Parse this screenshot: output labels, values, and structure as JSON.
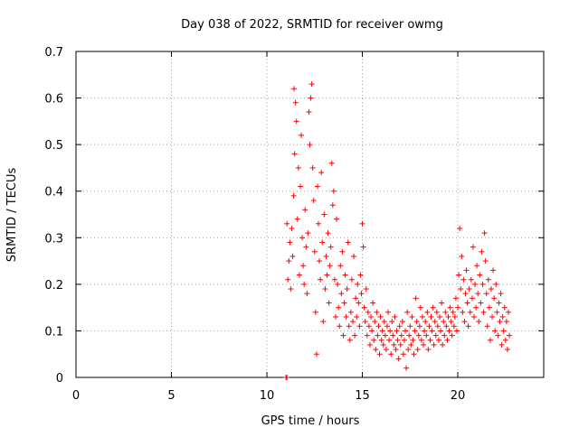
{
  "chart_data": {
    "type": "scatter",
    "title": "Day 038 of 2022, SRMTID for receiver owmg",
    "xlabel": "GPS time / hours",
    "ylabel": "SRMTID / TECUs",
    "xlim": [
      0,
      24.5
    ],
    "ylim": [
      0,
      0.7
    ],
    "xticks": [
      0,
      5,
      10,
      15,
      20
    ],
    "yticks": [
      0,
      0.1,
      0.2,
      0.3,
      0.4,
      0.5,
      0.6,
      0.7
    ],
    "xtick_labels": [
      "0",
      "5",
      "10",
      "15",
      "20"
    ],
    "ytick_labels": [
      "0",
      "0.1",
      "0.2",
      "0.3",
      "0.4",
      "0.5",
      "0.6",
      "0.7"
    ],
    "grid": true,
    "marker_color": "#ff0000",
    "marker": "+",
    "series": [
      {
        "name": "SRMTID",
        "points": [
          [
            11.0,
            0.0
          ],
          [
            11.05,
            0.0
          ],
          [
            11.05,
            0.33
          ],
          [
            11.1,
            0.21
          ],
          [
            11.15,
            0.25
          ],
          [
            11.2,
            0.29
          ],
          [
            11.25,
            0.19
          ],
          [
            11.3,
            0.32
          ],
          [
            11.35,
            0.26
          ],
          [
            11.4,
            0.39
          ],
          [
            11.42,
            0.62
          ],
          [
            11.45,
            0.48
          ],
          [
            11.5,
            0.59
          ],
          [
            11.55,
            0.55
          ],
          [
            11.6,
            0.34
          ],
          [
            11.65,
            0.45
          ],
          [
            11.7,
            0.22
          ],
          [
            11.75,
            0.41
          ],
          [
            11.8,
            0.52
          ],
          [
            11.85,
            0.3
          ],
          [
            11.9,
            0.24
          ],
          [
            11.95,
            0.2
          ],
          [
            12.0,
            0.36
          ],
          [
            12.05,
            0.28
          ],
          [
            12.1,
            0.18
          ],
          [
            12.15,
            0.31
          ],
          [
            12.2,
            0.57
          ],
          [
            12.25,
            0.5
          ],
          [
            12.3,
            0.6
          ],
          [
            12.35,
            0.63
          ],
          [
            12.4,
            0.45
          ],
          [
            12.45,
            0.38
          ],
          [
            12.5,
            0.27
          ],
          [
            12.55,
            0.14
          ],
          [
            12.6,
            0.05
          ],
          [
            12.65,
            0.41
          ],
          [
            12.7,
            0.33
          ],
          [
            12.75,
            0.25
          ],
          [
            12.8,
            0.21
          ],
          [
            12.85,
            0.44
          ],
          [
            12.9,
            0.29
          ],
          [
            12.95,
            0.12
          ],
          [
            13.0,
            0.35
          ],
          [
            13.05,
            0.19
          ],
          [
            13.1,
            0.26
          ],
          [
            13.15,
            0.22
          ],
          [
            13.2,
            0.31
          ],
          [
            13.25,
            0.16
          ],
          [
            13.3,
            0.24
          ],
          [
            13.35,
            0.28
          ],
          [
            13.4,
            0.46
          ],
          [
            13.45,
            0.37
          ],
          [
            13.5,
            0.4
          ],
          [
            13.55,
            0.21
          ],
          [
            13.6,
            0.13
          ],
          [
            13.65,
            0.34
          ],
          [
            13.7,
            0.2
          ],
          [
            13.75,
            0.15
          ],
          [
            13.8,
            0.11
          ],
          [
            13.85,
            0.24
          ],
          [
            13.9,
            0.18
          ],
          [
            13.95,
            0.27
          ],
          [
            14.0,
            0.09
          ],
          [
            14.05,
            0.16
          ],
          [
            14.1,
            0.22
          ],
          [
            14.15,
            0.13
          ],
          [
            14.2,
            0.19
          ],
          [
            14.25,
            0.29
          ],
          [
            14.3,
            0.11
          ],
          [
            14.35,
            0.08
          ],
          [
            14.4,
            0.14
          ],
          [
            14.45,
            0.21
          ],
          [
            14.5,
            0.12
          ],
          [
            14.55,
            0.26
          ],
          [
            14.6,
            0.09
          ],
          [
            14.65,
            0.17
          ],
          [
            14.7,
            0.13
          ],
          [
            14.75,
            0.2
          ],
          [
            14.8,
            0.16
          ],
          [
            14.85,
            0.11
          ],
          [
            14.9,
            0.22
          ],
          [
            14.95,
            0.18
          ],
          [
            15.0,
            0.33
          ],
          [
            15.05,
            0.28
          ],
          [
            15.1,
            0.15
          ],
          [
            15.15,
            0.12
          ],
          [
            15.2,
            0.19
          ],
          [
            15.25,
            0.09
          ],
          [
            15.3,
            0.14
          ],
          [
            15.35,
            0.11
          ],
          [
            15.4,
            0.07
          ],
          [
            15.45,
            0.13
          ],
          [
            15.5,
            0.1
          ],
          [
            15.55,
            0.16
          ],
          [
            15.6,
            0.08
          ],
          [
            15.65,
            0.12
          ],
          [
            15.7,
            0.06
          ],
          [
            15.75,
            0.14
          ],
          [
            15.8,
            0.09
          ],
          [
            15.85,
            0.11
          ],
          [
            15.9,
            0.05
          ],
          [
            15.95,
            0.13
          ],
          [
            16.0,
            0.08
          ],
          [
            16.05,
            0.1
          ],
          [
            16.1,
            0.07
          ],
          [
            16.15,
            0.12
          ],
          [
            16.2,
            0.09
          ],
          [
            16.25,
            0.06
          ],
          [
            16.3,
            0.11
          ],
          [
            16.35,
            0.14
          ],
          [
            16.4,
            0.08
          ],
          [
            16.45,
            0.1
          ],
          [
            16.5,
            0.05
          ],
          [
            16.55,
            0.12
          ],
          [
            16.6,
            0.09
          ],
          [
            16.65,
            0.07
          ],
          [
            16.7,
            0.13
          ],
          [
            16.75,
            0.06
          ],
          [
            16.8,
            0.1
          ],
          [
            16.85,
            0.08
          ],
          [
            16.9,
            0.04
          ],
          [
            16.95,
            0.11
          ],
          [
            17.0,
            0.07
          ],
          [
            17.05,
            0.09
          ],
          [
            17.1,
            0.12
          ],
          [
            17.15,
            0.05
          ],
          [
            17.2,
            0.08
          ],
          [
            17.25,
            0.1
          ],
          [
            17.3,
            0.02
          ],
          [
            17.35,
            0.14
          ],
          [
            17.4,
            0.06
          ],
          [
            17.45,
            0.09
          ],
          [
            17.5,
            0.11
          ],
          [
            17.55,
            0.07
          ],
          [
            17.6,
            0.13
          ],
          [
            17.65,
            0.08
          ],
          [
            17.7,
            0.05
          ],
          [
            17.75,
            0.1
          ],
          [
            17.8,
            0.17
          ],
          [
            17.85,
            0.12
          ],
          [
            17.9,
            0.06
          ],
          [
            17.95,
            0.09
          ],
          [
            18.0,
            0.11
          ],
          [
            18.05,
            0.15
          ],
          [
            18.1,
            0.08
          ],
          [
            18.15,
            0.13
          ],
          [
            18.2,
            0.07
          ],
          [
            18.25,
            0.1
          ],
          [
            18.3,
            0.12
          ],
          [
            18.35,
            0.09
          ],
          [
            18.4,
            0.14
          ],
          [
            18.45,
            0.06
          ],
          [
            18.5,
            0.11
          ],
          [
            18.55,
            0.08
          ],
          [
            18.6,
            0.13
          ],
          [
            18.65,
            0.1
          ],
          [
            18.7,
            0.15
          ],
          [
            18.75,
            0.07
          ],
          [
            18.8,
            0.12
          ],
          [
            18.85,
            0.09
          ],
          [
            18.9,
            0.14
          ],
          [
            18.95,
            0.11
          ],
          [
            19.0,
            0.08
          ],
          [
            19.05,
            0.13
          ],
          [
            19.1,
            0.1
          ],
          [
            19.15,
            0.16
          ],
          [
            19.2,
            0.07
          ],
          [
            19.25,
            0.12
          ],
          [
            19.3,
            0.09
          ],
          [
            19.35,
            0.14
          ],
          [
            19.4,
            0.11
          ],
          [
            19.45,
            0.08
          ],
          [
            19.5,
            0.13
          ],
          [
            19.55,
            0.1
          ],
          [
            19.6,
            0.15
          ],
          [
            19.65,
            0.12
          ],
          [
            19.7,
            0.09
          ],
          [
            19.75,
            0.14
          ],
          [
            19.8,
            0.11
          ],
          [
            19.85,
            0.13
          ],
          [
            19.9,
            0.17
          ],
          [
            19.95,
            0.1
          ],
          [
            20.0,
            0.15
          ],
          [
            20.05,
            0.22
          ],
          [
            20.1,
            0.32
          ],
          [
            20.15,
            0.19
          ],
          [
            20.2,
            0.26
          ],
          [
            20.25,
            0.14
          ],
          [
            20.3,
            0.21
          ],
          [
            20.35,
            0.12
          ],
          [
            20.4,
            0.18
          ],
          [
            20.45,
            0.23
          ],
          [
            20.5,
            0.16
          ],
          [
            20.55,
            0.11
          ],
          [
            20.6,
            0.19
          ],
          [
            20.65,
            0.14
          ],
          [
            20.7,
            0.21
          ],
          [
            20.75,
            0.17
          ],
          [
            20.8,
            0.28
          ],
          [
            20.85,
            0.13
          ],
          [
            20.9,
            0.2
          ],
          [
            20.95,
            0.15
          ],
          [
            21.0,
            0.24
          ],
          [
            21.05,
            0.18
          ],
          [
            21.1,
            0.12
          ],
          [
            21.15,
            0.22
          ],
          [
            21.2,
            0.16
          ],
          [
            21.25,
            0.27
          ],
          [
            21.3,
            0.2
          ],
          [
            21.35,
            0.14
          ],
          [
            21.4,
            0.31
          ],
          [
            21.45,
            0.25
          ],
          [
            21.5,
            0.18
          ],
          [
            21.55,
            0.11
          ],
          [
            21.6,
            0.21
          ],
          [
            21.65,
            0.15
          ],
          [
            21.7,
            0.08
          ],
          [
            21.75,
            0.19
          ],
          [
            21.8,
            0.13
          ],
          [
            21.85,
            0.23
          ],
          [
            21.9,
            0.17
          ],
          [
            21.95,
            0.1
          ],
          [
            22.0,
            0.2
          ],
          [
            22.05,
            0.14
          ],
          [
            22.1,
            0.09
          ],
          [
            22.15,
            0.16
          ],
          [
            22.2,
            0.12
          ],
          [
            22.25,
            0.18
          ],
          [
            22.3,
            0.07
          ],
          [
            22.35,
            0.13
          ],
          [
            22.4,
            0.1
          ],
          [
            22.45,
            0.15
          ],
          [
            22.5,
            0.08
          ],
          [
            22.55,
            0.12
          ],
          [
            22.6,
            0.06
          ],
          [
            22.65,
            0.14
          ],
          [
            22.7,
            0.09
          ]
        ]
      }
    ]
  }
}
